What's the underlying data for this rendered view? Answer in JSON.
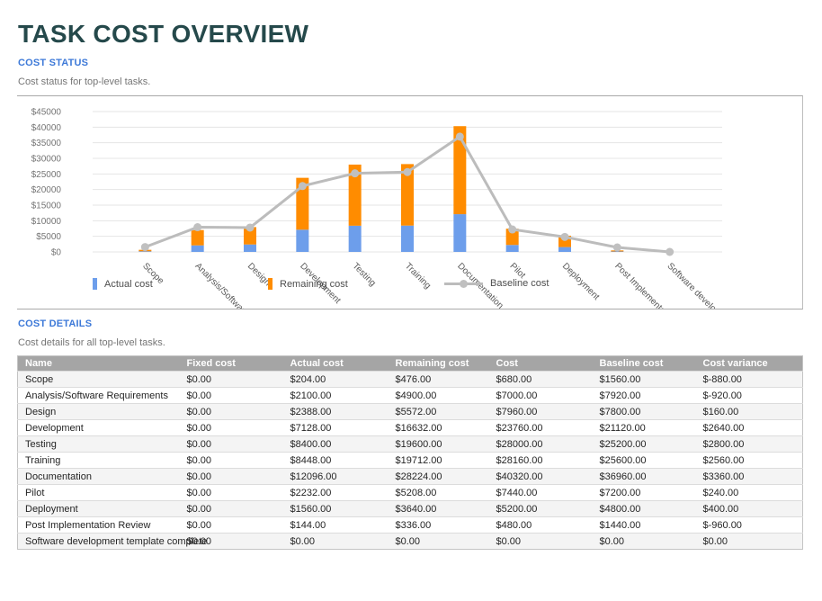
{
  "page": {
    "title": "TASK COST OVERVIEW"
  },
  "cost_status": {
    "heading": "COST STATUS",
    "subtitle": "Cost status for top-level tasks."
  },
  "cost_details": {
    "heading": "COST DETAILS",
    "subtitle": "Cost details for all top-level tasks."
  },
  "chart_data": {
    "type": "bar",
    "stacked": true,
    "title": "",
    "xlabel": "",
    "ylabel": "",
    "categories": [
      "Scope",
      "Analysis/Software Requirements",
      "Design",
      "Development",
      "Testing",
      "Training",
      "Documentation",
      "Pilot",
      "Deployment",
      "Post Implementation Review",
      "Software development template complete"
    ],
    "series": [
      {
        "name": "Actual cost",
        "type": "bar",
        "color": "#6d9eeb",
        "values": [
          204,
          2100,
          2388,
          7128,
          8400,
          8448,
          12096,
          2232,
          1560,
          144,
          0
        ]
      },
      {
        "name": "Remaining cost",
        "type": "bar",
        "color": "#ff8c00",
        "values": [
          476,
          4900,
          5572,
          16632,
          19600,
          19712,
          28224,
          5208,
          3640,
          336,
          0
        ]
      },
      {
        "name": "Baseline cost",
        "type": "line",
        "color": "#bcbcbc",
        "marker_color": "#c0c0c0",
        "values": [
          1560,
          7920,
          7800,
          21120,
          25200,
          25600,
          36960,
          7200,
          4800,
          1440,
          0
        ]
      }
    ],
    "ylim": [
      0,
      45000
    ],
    "ytick_step": 5000,
    "ytick_labels": [
      "$0",
      "$5000",
      "$10000",
      "$15000",
      "$20000",
      "$25000",
      "$30000",
      "$35000",
      "$40000",
      "$45000"
    ],
    "grid": true,
    "legend_position": "bottom"
  },
  "table": {
    "columns": [
      "Name",
      "Fixed cost",
      "Actual cost",
      "Remaining cost",
      "Cost",
      "Baseline cost",
      "Cost variance"
    ],
    "rows": [
      [
        "Scope",
        "$0.00",
        "$204.00",
        "$476.00",
        "$680.00",
        "$1560.00",
        "$-880.00"
      ],
      [
        "Analysis/Software Requirements",
        "$0.00",
        "$2100.00",
        "$4900.00",
        "$7000.00",
        "$7920.00",
        "$-920.00"
      ],
      [
        "Design",
        "$0.00",
        "$2388.00",
        "$5572.00",
        "$7960.00",
        "$7800.00",
        "$160.00"
      ],
      [
        "Development",
        "$0.00",
        "$7128.00",
        "$16632.00",
        "$23760.00",
        "$21120.00",
        "$2640.00"
      ],
      [
        "Testing",
        "$0.00",
        "$8400.00",
        "$19600.00",
        "$28000.00",
        "$25200.00",
        "$2800.00"
      ],
      [
        "Training",
        "$0.00",
        "$8448.00",
        "$19712.00",
        "$28160.00",
        "$25600.00",
        "$2560.00"
      ],
      [
        "Documentation",
        "$0.00",
        "$12096.00",
        "$28224.00",
        "$40320.00",
        "$36960.00",
        "$3360.00"
      ],
      [
        "Pilot",
        "$0.00",
        "$2232.00",
        "$5208.00",
        "$7440.00",
        "$7200.00",
        "$240.00"
      ],
      [
        "Deployment",
        "$0.00",
        "$1560.00",
        "$3640.00",
        "$5200.00",
        "$4800.00",
        "$400.00"
      ],
      [
        "Post Implementation Review",
        "$0.00",
        "$144.00",
        "$336.00",
        "$480.00",
        "$1440.00",
        "$-960.00"
      ],
      [
        "Software development template complete",
        "$0.00",
        "$0.00",
        "$0.00",
        "$0.00",
        "$0.00",
        "$0.00"
      ]
    ]
  },
  "colors": {
    "title": "#25494b",
    "section_heading": "#3d79d8",
    "table_header_bg": "#a5a5a5"
  }
}
